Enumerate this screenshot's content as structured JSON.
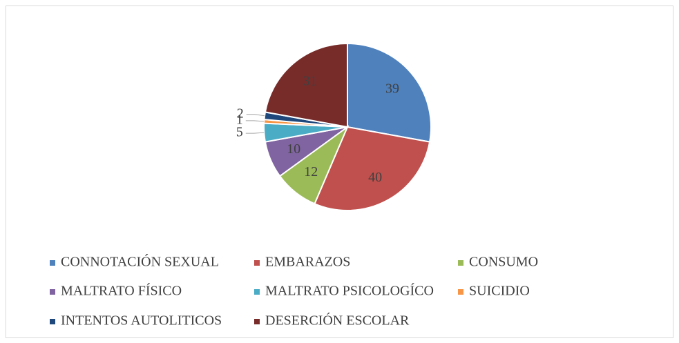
{
  "chart_data": {
    "type": "pie",
    "categories": [
      "CONNOTACIÓN SEXUAL",
      "EMBARAZOS",
      "CONSUMO",
      "MALTRATO FÍSICO",
      "MALTRATO PSICOLOGÍCO",
      "SUICIDIO",
      "INTENTOS AUTOLITICOS",
      "DESERCIÓN ESCOLAR"
    ],
    "values": [
      39,
      40,
      12,
      10,
      5,
      1,
      2,
      31
    ],
    "colors": [
      "#4f81bd",
      "#c0504d",
      "#9bbb59",
      "#8064a2",
      "#4bacc6",
      "#f79646",
      "#1f497d",
      "#772c2a"
    ],
    "legend": "bottom"
  }
}
